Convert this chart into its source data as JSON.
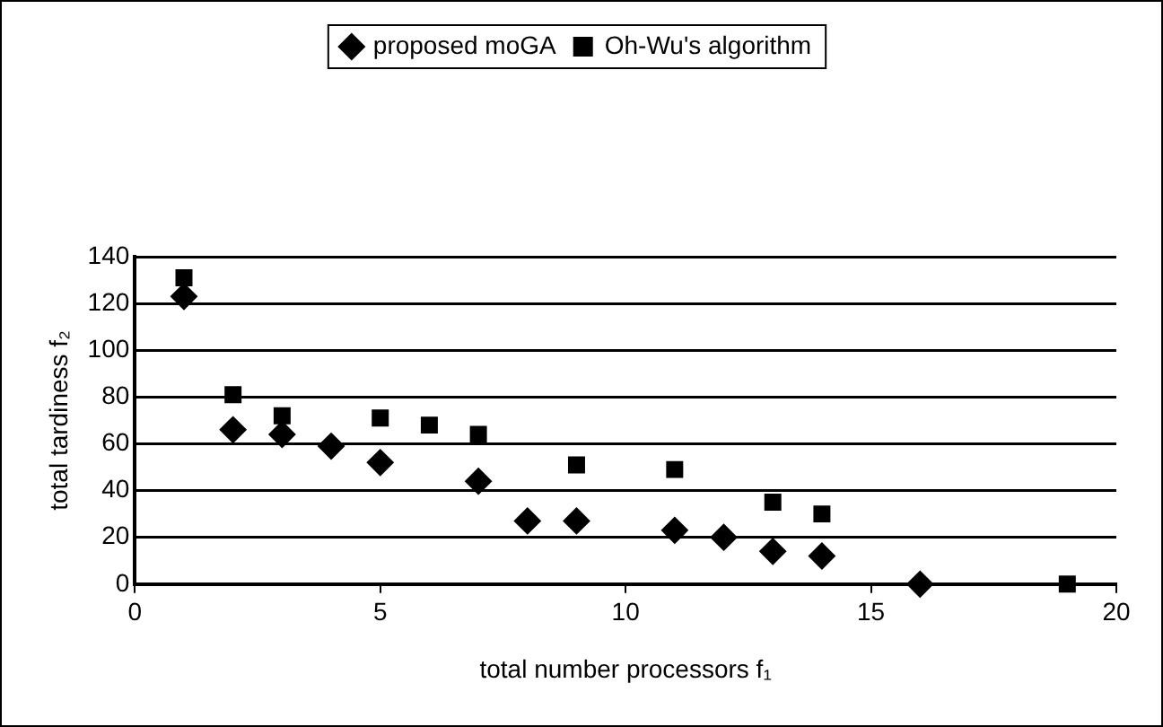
{
  "chart_data": {
    "type": "scatter",
    "xlabel": "total number processors f₁",
    "ylabel": "total tardiness f₂",
    "xlim": [
      0,
      20
    ],
    "xticks": [
      0,
      5,
      10,
      15,
      20
    ],
    "ylim": [
      0,
      140
    ],
    "yticks": [
      0,
      20,
      40,
      60,
      80,
      100,
      120,
      140
    ],
    "grid": "y",
    "legend": "top",
    "series": [
      {
        "name": "proposed moGA",
        "color": "#000000",
        "marker": "diamond",
        "x": [
          1,
          2,
          3,
          4,
          5,
          7,
          8,
          9,
          11,
          12,
          13,
          14,
          16
        ],
        "values": [
          123,
          66,
          64,
          59,
          52,
          44,
          27,
          27,
          23,
          20,
          14,
          12,
          0
        ]
      },
      {
        "name": "Oh-Wu's algorithm",
        "color": "#000000",
        "marker": "square",
        "x": [
          1,
          2,
          3,
          5,
          6,
          7,
          9,
          11,
          13,
          14,
          19
        ],
        "values": [
          131,
          81,
          72,
          71,
          68,
          64,
          51,
          49,
          35,
          30,
          0
        ]
      }
    ]
  }
}
